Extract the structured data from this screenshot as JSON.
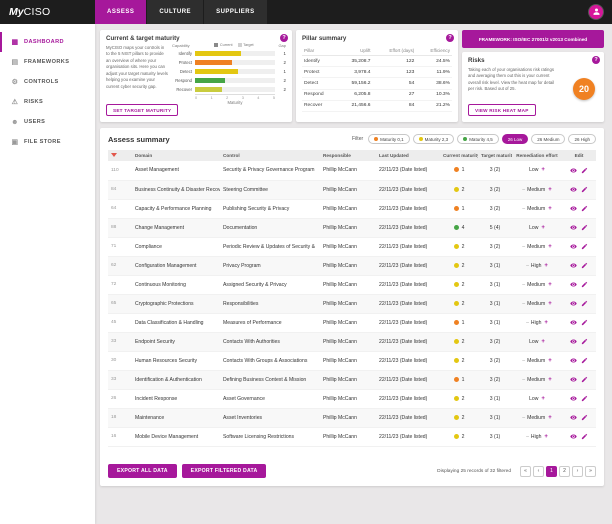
{
  "icons": {
    "help": "?"
  },
  "colors": {
    "accent": "#A6189B",
    "topbar_bg": "#1d1d1d",
    "orange": "#EF8122",
    "yellow": "#E3C712",
    "green": "#46A546",
    "risk_orange": "#F08122",
    "sort_red": "#E2574C"
  },
  "topbar": {
    "logo": {
      "prefix": "My",
      "suffix": "CISO"
    },
    "tabs": [
      {
        "label": "ASSESS",
        "active": true
      },
      {
        "label": "CULTURE",
        "active": false
      },
      {
        "label": "SUPPLIERS",
        "active": false
      }
    ],
    "avatar_icon": "person-icon"
  },
  "sidebar": {
    "items": [
      {
        "label": "DASHBOARD",
        "icon": "dashboard-icon",
        "glyph": "▦",
        "active": true
      },
      {
        "label": "FRAMEWORKS",
        "icon": "frameworks-icon",
        "glyph": "▤",
        "active": false
      },
      {
        "label": "CONTROLS",
        "icon": "controls-icon",
        "glyph": "⚙",
        "active": false
      },
      {
        "label": "RISKS",
        "icon": "risks-icon",
        "glyph": "⚠",
        "active": false
      },
      {
        "label": "USERS",
        "icon": "users-icon",
        "glyph": "☻",
        "active": false
      },
      {
        "label": "FILE STORE",
        "icon": "file-store-icon",
        "glyph": "▣",
        "active": false
      }
    ]
  },
  "maturity_panel": {
    "title": "Current & target maturity",
    "description": "MyCISO maps your controls in to the 5 NIST pillars to provide an overview of where your organisation sits. Here you can adjust your target maturity levels helping you examine your current cyber security gap.",
    "button_label": "SET TARGET MATURITY",
    "chart": {
      "type": "bar",
      "capability_label": "Capability",
      "gap_label": "Gap",
      "axis_label": "Maturity",
      "axis_ticks": [
        0,
        1,
        2,
        3,
        4,
        5
      ],
      "axis_max": 5,
      "legend": [
        {
          "label": "Current",
          "color": "#8a8a8a"
        },
        {
          "label": "Target",
          "color": "#d0d0d0"
        }
      ],
      "rows": [
        {
          "category": "Identify",
          "value": 2.9,
          "color": "#E3C712",
          "gap": 1
        },
        {
          "category": "Protect",
          "value": 2.3,
          "color": "#EF8122",
          "gap": 2
        },
        {
          "category": "Detect",
          "value": 2.7,
          "color": "#E3C712",
          "gap": 1
        },
        {
          "category": "Respond",
          "value": 1.9,
          "color": "#46A546",
          "gap": 2
        },
        {
          "category": "Recover",
          "value": 1.7,
          "color": "#C9CC3E",
          "gap": 2
        }
      ]
    }
  },
  "pillar_panel": {
    "title": "Pillar summary",
    "columns": [
      "Pillar",
      "Uplift",
      "Effort (days)",
      "Efficiency"
    ],
    "rows": [
      {
        "pillar": "Identify",
        "uplift": "35,208.7",
        "effort": "122",
        "efficiency": "24.5%"
      },
      {
        "pillar": "Protect",
        "uplift": "3,978.4",
        "effort": "123",
        "efficiency": "11.9%"
      },
      {
        "pillar": "Detect",
        "uplift": "59,156.2",
        "effort": "54",
        "efficiency": "38.6%"
      },
      {
        "pillar": "Respond",
        "uplift": "6,205.8",
        "effort": "27",
        "efficiency": "10.3%"
      },
      {
        "pillar": "Recover",
        "uplift": "21,456.6",
        "effort": "84",
        "efficiency": "21.2%"
      }
    ]
  },
  "framework_button": "FRAMEWORK: ISO/IEC 27001/2 v2013 Combined",
  "risks_panel": {
    "title": "Risks",
    "description": "Taking each of your organisations risk ratings and averaging them out this is your current overall risk level. View the heat map for detail per risk. Based out of 25.",
    "score": "20",
    "button_label": "VIEW RISK HEAT MAP"
  },
  "assess": {
    "title": "Assess summary",
    "filter_label": "Filter",
    "filters": [
      {
        "label": "Maturity 0,1",
        "dot": "#EF8122",
        "active": false
      },
      {
        "label": "Maturity 2,3",
        "dot": "#E3C712",
        "active": false
      },
      {
        "label": "Maturity 4,5",
        "dot": "#46A546",
        "active": false
      },
      {
        "label": "26 Low",
        "dot": null,
        "active": true
      },
      {
        "label": "26 Medium",
        "dot": null,
        "active": false
      },
      {
        "label": "26 High",
        "dot": null,
        "active": false
      }
    ],
    "columns": [
      "",
      "Domain",
      "Control",
      "Responsible",
      "Last Updated",
      "Current maturity",
      "Target maturity",
      "Remediation effort",
      "Edit"
    ],
    "effort_icons": {
      "plus": "+",
      "dash": "–"
    },
    "edit_icons": {
      "view": "eye-icon",
      "edit": "pencil-icon"
    },
    "rows": [
      {
        "id": "110",
        "domain": "Asset Management",
        "control": "Security & Privacy Governance Program",
        "responsible": "Phillip McCann",
        "updated": "22/11/23 (Date listed)",
        "current_maturity": 1,
        "maturity_color": "#EF8122",
        "target_maturity": "3 (2)",
        "effort": "Low",
        "effort_dash": false
      },
      {
        "id": "84",
        "domain": "Business Continuity & Disaster Recovery",
        "control": "Steering Committee",
        "responsible": "Phillip McCann",
        "updated": "22/11/23 (Date listed)",
        "current_maturity": 2,
        "maturity_color": "#E3C712",
        "target_maturity": "3 (2)",
        "effort": "Medium",
        "effort_dash": true
      },
      {
        "id": "64",
        "domain": "Capacity & Performance Planning",
        "control": "Publishing Security & Privacy",
        "responsible": "Phillip McCann",
        "updated": "22/11/23 (Date listed)",
        "current_maturity": 1,
        "maturity_color": "#EF8122",
        "target_maturity": "3 (2)",
        "effort": "Medium",
        "effort_dash": true
      },
      {
        "id": "88",
        "domain": "Change Management",
        "control": "Documentation",
        "responsible": "Phillip McCann",
        "updated": "22/11/23 (Date listed)",
        "current_maturity": 4,
        "maturity_color": "#46A546",
        "target_maturity": "5 (4)",
        "effort": "Low",
        "effort_dash": false
      },
      {
        "id": "71",
        "domain": "Compliance",
        "control": "Periodic Review & Updates of Security &",
        "responsible": "Phillip McCann",
        "updated": "22/11/23 (Date listed)",
        "current_maturity": 2,
        "maturity_color": "#E3C712",
        "target_maturity": "3 (2)",
        "effort": "Medium",
        "effort_dash": true
      },
      {
        "id": "62",
        "domain": "Configuration Management",
        "control": "Privacy Program",
        "responsible": "Phillip McCann",
        "updated": "22/11/23 (Date listed)",
        "current_maturity": 2,
        "maturity_color": "#E3C712",
        "target_maturity": "3 (1)",
        "effort": "High",
        "effort_dash": true
      },
      {
        "id": "72",
        "domain": "Continuous Monitoring",
        "control": "Assigned Security & Privacy",
        "responsible": "Phillip McCann",
        "updated": "22/11/23 (Date listed)",
        "current_maturity": 2,
        "maturity_color": "#E3C712",
        "target_maturity": "3 (1)",
        "effort": "Medium",
        "effort_dash": true
      },
      {
        "id": "65",
        "domain": "Cryptographic Protections",
        "control": "Responsibilities",
        "responsible": "Phillip McCann",
        "updated": "22/11/23 (Date listed)",
        "current_maturity": 2,
        "maturity_color": "#E3C712",
        "target_maturity": "3 (1)",
        "effort": "Medium",
        "effort_dash": true
      },
      {
        "id": "45",
        "domain": "Data Classification & Handling",
        "control": "Measures of Performance",
        "responsible": "Phillip McCann",
        "updated": "22/11/23 (Date listed)",
        "current_maturity": 1,
        "maturity_color": "#EF8122",
        "target_maturity": "3 (1)",
        "effort": "High",
        "effort_dash": true
      },
      {
        "id": "33",
        "domain": "Endpoint Security",
        "control": "Contacts With Authorities",
        "responsible": "Phillip McCann",
        "updated": "22/11/23 (Date listed)",
        "current_maturity": 2,
        "maturity_color": "#E3C712",
        "target_maturity": "3 (2)",
        "effort": "Low",
        "effort_dash": false
      },
      {
        "id": "30",
        "domain": "Human Resources Security",
        "control": "Contacts With Groups & Associations",
        "responsible": "Phillip McCann",
        "updated": "22/11/23 (Date listed)",
        "current_maturity": 2,
        "maturity_color": "#E3C712",
        "target_maturity": "3 (2)",
        "effort": "Medium",
        "effort_dash": true
      },
      {
        "id": "33",
        "domain": "Identification & Authentication",
        "control": "Defining Business Context & Mission",
        "responsible": "Phillip McCann",
        "updated": "22/11/23 (Date listed)",
        "current_maturity": 1,
        "maturity_color": "#EF8122",
        "target_maturity": "3 (2)",
        "effort": "Medium",
        "effort_dash": true
      },
      {
        "id": "26",
        "domain": "Incident Response",
        "control": "Asset Governance",
        "responsible": "Phillip McCann",
        "updated": "22/11/23 (Date listed)",
        "current_maturity": 2,
        "maturity_color": "#E3C712",
        "target_maturity": "3 (1)",
        "effort": "Low",
        "effort_dash": false
      },
      {
        "id": "18",
        "domain": "Maintenance",
        "control": "Asset Inventories",
        "responsible": "Phillip McCann",
        "updated": "22/11/23 (Date listed)",
        "current_maturity": 2,
        "maturity_color": "#E3C712",
        "target_maturity": "3 (1)",
        "effort": "Medium",
        "effort_dash": true
      },
      {
        "id": "16",
        "domain": "Mobile Device Management",
        "control": "Software Licensing Restrictions",
        "responsible": "Phillip McCann",
        "updated": "22/11/23 (Date listed)",
        "current_maturity": 2,
        "maturity_color": "#E3C712",
        "target_maturity": "3 (1)",
        "effort": "High",
        "effort_dash": true
      }
    ],
    "footer": {
      "export_all": "EXPORT ALL DATA",
      "export_filtered": "EXPORT FILTERED DATA",
      "display_text": "Displaying 25 records of 32 filtered",
      "pagination": {
        "first": "«",
        "prev": "‹",
        "pages": [
          "1",
          "2"
        ],
        "active_page": "1",
        "next": "›",
        "last": "»"
      }
    }
  }
}
